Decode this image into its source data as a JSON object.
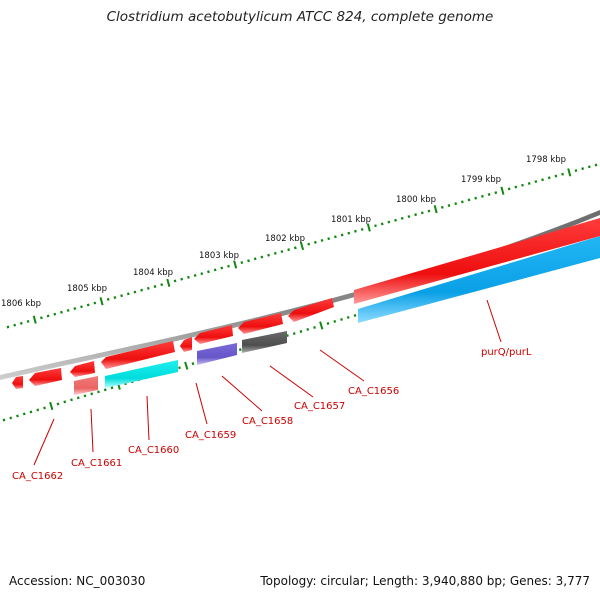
{
  "title": "Clostridium acetobutylicum ATCC 824, complete genome",
  "accession": "Accession: NC_003030",
  "topology": "Topology: circular; Length: 3,940,880 bp; Genes: 3,777",
  "colors": {
    "backbone": "#808080",
    "tick": "#118811",
    "label": "#cc0000",
    "scale_text": "#111111"
  },
  "scale": [
    {
      "label": "1798 kbp"
    },
    {
      "label": "1799 kbp"
    },
    {
      "label": "1800 kbp"
    },
    {
      "label": "1801 kbp"
    },
    {
      "label": "1802 kbp"
    },
    {
      "label": "1803 kbp"
    },
    {
      "label": "1804 kbp"
    },
    {
      "label": "1805 kbp"
    },
    {
      "label": "1806 kbp"
    }
  ],
  "features": [
    {
      "name": "purQ/purL",
      "color": "#00aaee"
    },
    {
      "name": "CA_C1656",
      "color": "#ee1111"
    },
    {
      "name": "CA_C1657",
      "color": "#ee1111"
    },
    {
      "name": "CA_C1658",
      "color": "#555555"
    },
    {
      "name": "CA_C1659",
      "color": "#6a5acd"
    },
    {
      "name": "CA_C1660",
      "color": "#00dddd"
    },
    {
      "name": "CA_C1661",
      "color": "#ee6666"
    },
    {
      "name": "CA_C1662",
      "color": "#ee1111"
    }
  ]
}
